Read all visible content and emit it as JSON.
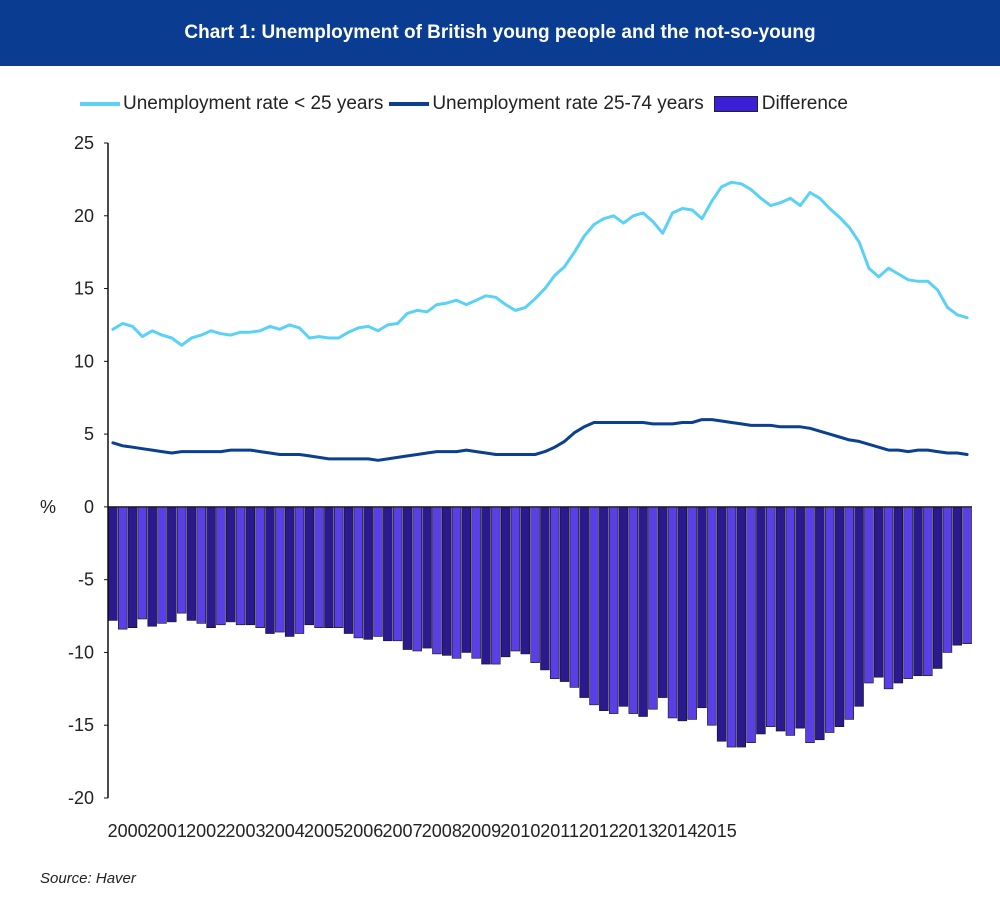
{
  "title": "Chart 1: Unemployment of British young people and the not-so-young",
  "source": "Source: Haver",
  "colors": {
    "header_bg": "#0a3d91",
    "young": "#5ad1f5",
    "old": "#0b3f8f",
    "diff_fill": "#2b1a8f",
    "diff_fill_light": "#5a3fe6"
  },
  "legend": [
    {
      "label": "Unemployment rate < 25 years",
      "swatch": "line",
      "color": "#5ad1f5"
    },
    {
      "label": "Unemployment  rate 25-74 years",
      "swatch": "line",
      "color": "#0b3f8f"
    },
    {
      "label": "Difference",
      "swatch": "box",
      "color": "#3b1fd6"
    }
  ],
  "chart_data": {
    "type": "line",
    "title": "Chart 1: Unemployment of British young people and the not-so-young",
    "ylabel": "%",
    "ylim": [
      -20,
      25
    ],
    "yticks": [
      -20,
      -15,
      -10,
      -5,
      0,
      5,
      10,
      15,
      20,
      25
    ],
    "x_tick_labels": [
      "2000",
      "2001",
      "2002",
      "2003",
      "2004",
      "2005",
      "2006",
      "2007",
      "2008",
      "2009",
      "2010",
      "2011",
      "2012",
      "2013",
      "2014",
      "2015"
    ],
    "x_start": "2000-01",
    "x_end": "2015-09",
    "x_step": "quarter",
    "series": [
      {
        "name": "Unemployment rate < 25 years",
        "type": "line",
        "color": "#5ad1f5",
        "values": [
          12.2,
          12.6,
          12.4,
          11.7,
          12.1,
          11.8,
          11.6,
          11.1,
          11.6,
          11.8,
          12.1,
          11.9,
          11.8,
          12.0,
          12.0,
          12.1,
          12.4,
          12.2,
          12.5,
          12.3,
          11.6,
          11.7,
          11.6,
          11.6,
          12.0,
          12.3,
          12.4,
          12.1,
          12.5,
          12.6,
          13.3,
          13.5,
          13.4,
          13.9,
          14.0,
          14.2,
          13.9,
          14.2,
          14.5,
          14.4,
          13.9,
          13.5,
          13.7,
          14.3,
          15.0,
          15.9,
          16.5,
          17.5,
          18.6,
          19.4,
          19.8,
          20.0,
          19.5,
          20.0,
          20.2,
          19.6,
          18.8,
          20.2,
          20.5,
          20.4,
          19.8,
          21.0,
          22.0,
          22.3,
          22.2,
          21.8,
          21.2,
          20.7,
          20.9,
          21.2,
          20.7,
          21.6,
          21.2,
          20.5,
          19.9,
          19.2,
          18.2,
          16.4,
          15.8,
          16.4,
          16.0,
          15.6,
          15.5,
          15.5,
          14.9,
          13.7,
          13.2,
          13.0
        ]
      },
      {
        "name": "Unemployment  rate 25-74 years",
        "type": "line",
        "color": "#0b3f8f",
        "values": [
          4.4,
          4.2,
          4.1,
          4.0,
          3.9,
          3.8,
          3.7,
          3.8,
          3.8,
          3.8,
          3.8,
          3.8,
          3.9,
          3.9,
          3.9,
          3.8,
          3.7,
          3.6,
          3.6,
          3.6,
          3.5,
          3.4,
          3.3,
          3.3,
          3.3,
          3.3,
          3.3,
          3.2,
          3.3,
          3.4,
          3.5,
          3.6,
          3.7,
          3.8,
          3.8,
          3.8,
          3.9,
          3.8,
          3.7,
          3.6,
          3.6,
          3.6,
          3.6,
          3.6,
          3.8,
          4.1,
          4.5,
          5.1,
          5.5,
          5.8,
          5.8,
          5.8,
          5.8,
          5.8,
          5.8,
          5.7,
          5.7,
          5.7,
          5.8,
          5.8,
          6.0,
          6.0,
          5.9,
          5.8,
          5.7,
          5.6,
          5.6,
          5.6,
          5.5,
          5.5,
          5.5,
          5.4,
          5.2,
          5.0,
          4.8,
          4.6,
          4.5,
          4.3,
          4.1,
          3.9,
          3.9,
          3.8,
          3.9,
          3.9,
          3.8,
          3.7,
          3.7,
          3.6
        ]
      },
      {
        "name": "Difference",
        "type": "bar",
        "color": "#3b1fd6",
        "values": [
          -7.8,
          -8.4,
          -8.3,
          -7.7,
          -8.2,
          -8.0,
          -7.9,
          -7.3,
          -7.8,
          -8.0,
          -8.3,
          -8.1,
          -7.9,
          -8.1,
          -8.1,
          -8.3,
          -8.7,
          -8.6,
          -8.9,
          -8.7,
          -8.1,
          -8.3,
          -8.3,
          -8.3,
          -8.7,
          -9.0,
          -9.1,
          -8.9,
          -9.2,
          -9.2,
          -9.8,
          -9.9,
          -9.7,
          -10.1,
          -10.2,
          -10.4,
          -10.0,
          -10.4,
          -10.8,
          -10.8,
          -10.3,
          -9.9,
          -10.1,
          -10.7,
          -11.2,
          -11.8,
          -12.0,
          -12.4,
          -13.1,
          -13.6,
          -14.0,
          -14.2,
          -13.7,
          -14.2,
          -14.4,
          -13.9,
          -13.1,
          -14.5,
          -14.7,
          -14.6,
          -13.8,
          -15.0,
          -16.1,
          -16.5,
          -16.5,
          -16.2,
          -15.6,
          -15.1,
          -15.4,
          -15.7,
          -15.2,
          -16.2,
          -16.0,
          -15.5,
          -15.1,
          -14.6,
          -13.7,
          -12.1,
          -11.7,
          -12.5,
          -12.1,
          -11.8,
          -11.6,
          -11.6,
          -11.1,
          -10.0,
          -9.5,
          -9.4
        ]
      }
    ]
  }
}
